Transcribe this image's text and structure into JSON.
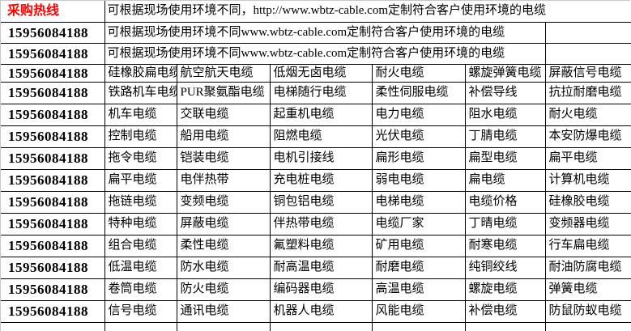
{
  "table": {
    "hotline_label": "采购热线",
    "phone": "15956084188",
    "banner_row1": "可根据现场使用环境不同，http://www.wbtz-cable.com定制符合客户使用环境的电缆",
    "banner_row2": "可根据现场使用环境不同www.wbtz-cable.com定制符合客户使用环境的电缆",
    "product_rows": [
      [
        "硅橡胶扁电缆",
        "航空航天电缆",
        "低烟无卤电缆",
        "耐火电缆",
        "螺旋弹簧电缆",
        "屏蔽信号电缆"
      ],
      [
        "铁路机车电缆",
        "PUR聚氨酯电缆",
        "电梯随行电缆",
        "柔性伺服电缆",
        "补偿导线",
        "抗拉耐磨电缆"
      ],
      [
        "机车电缆",
        "交联电缆",
        "起重机电缆",
        "电力电缆",
        "阻水电缆",
        "耐火电缆"
      ],
      [
        "控制电缆",
        "船用电缆",
        "阻燃电缆",
        "光伏电缆",
        "丁腈电缆",
        "本安防爆电缆"
      ],
      [
        "拖令电缆",
        "铠装电缆",
        "电机引接线",
        "扁形电缆",
        "扁型电缆",
        "扁平电缆"
      ],
      [
        "扁平电缆",
        "电伴热带",
        "充电桩电缆",
        "弱电电缆",
        "扁电缆",
        "计算机电缆"
      ],
      [
        "拖链电缆",
        "变频电缆",
        "铜包铝电缆",
        "电梯电缆",
        "电缆价格",
        "硅橡胶电缆"
      ],
      [
        "特种电缆",
        "屏蔽电缆",
        "伴热带电缆",
        "电缆厂家",
        "丁晴电缆",
        "变频器电缆"
      ],
      [
        "组合电缆",
        "柔性电缆",
        "氟塑料电缆",
        "矿用电缆",
        "耐寒电缆",
        "行车扁电缆"
      ],
      [
        "低温电缆",
        "防水电缆",
        "耐高温电缆",
        "耐磨电缆",
        "纯铜绞线",
        "耐油防腐电缆"
      ],
      [
        "卷筒电缆",
        "防火电缆",
        "编码器电缆",
        "高温电缆",
        "螺旋电缆",
        "弹簧电缆"
      ],
      [
        "信号电缆",
        "通讯电缆",
        "机器人电缆",
        "风能电缆",
        "补偿电缆",
        "防鼠防蚁电缆"
      ]
    ],
    "colors": {
      "hotline_red": "#ff0000",
      "text": "#000000",
      "border": "#000000",
      "outer_border": "#c8c8c8",
      "background": "#ffffff"
    }
  }
}
